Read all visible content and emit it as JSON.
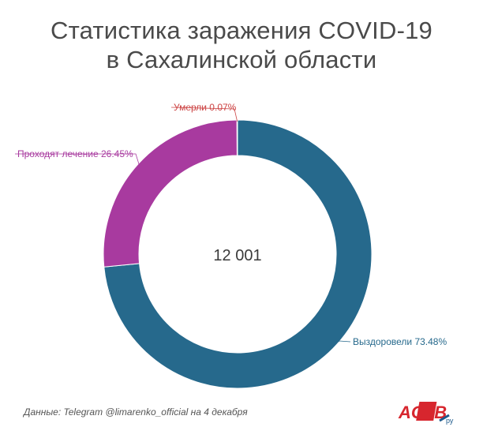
{
  "header": {
    "title_line1": "Статистика заражения COVID-19",
    "title_line2": "в Сахалинской области"
  },
  "chart_data": {
    "type": "pie",
    "variant": "donut",
    "center_label": "12 001",
    "slices": [
      {
        "label": "Выздоровели 73.48%",
        "value": 73.48,
        "color": "#26698c"
      },
      {
        "label": "Проходят лечение 26.45%",
        "value": 26.45,
        "color": "#a83a9f"
      },
      {
        "label": "Умерли 0.07%",
        "value": 0.07,
        "color": "#cc4444"
      }
    ],
    "label_colors": [
      "#26698c",
      "#a83a9f",
      "#cc4444"
    ]
  },
  "footer": {
    "source": "Данные: Telegram @limarenko_official на 4 декабря",
    "logo_text": "ACTB",
    "logo_suffix": "ру"
  }
}
